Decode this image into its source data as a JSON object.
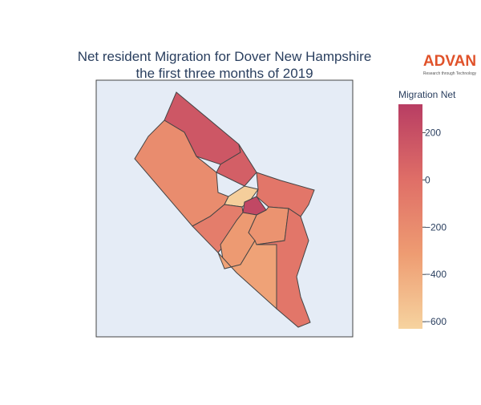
{
  "chart_data": {
    "type": "choropleth",
    "title": [
      "Net resident Migration for Dover New Hampshire",
      "the first three months of 2019"
    ],
    "logo": {
      "name": "ADVAN",
      "tagline": "Research through Technology"
    },
    "colorbar_title": "Migration Net",
    "zlim": [
      -630,
      320
    ],
    "zticks": [
      200,
      0,
      {
        "value": -200,
        "label": "−200"
      },
      {
        "value": -400,
        "label": "−400"
      },
      {
        "value": -600,
        "label": "−600"
      }
    ],
    "colorscale": [
      "#f6d39f",
      "#ee9c72",
      "#df6e67",
      "#b83d63"
    ],
    "values": [
      150,
      -200,
      100,
      -600,
      250,
      -50,
      -250,
      -100,
      -300,
      -350,
      -50
    ]
  }
}
